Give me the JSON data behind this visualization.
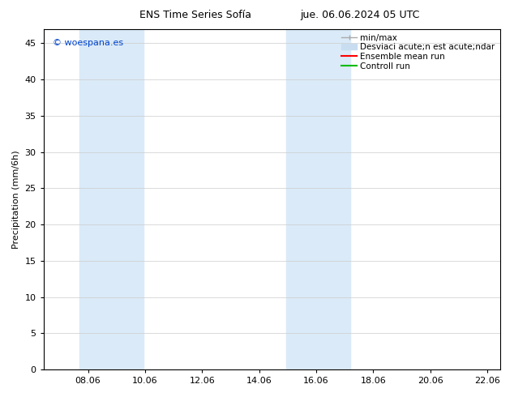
{
  "title_left": "ENS Time Series Sofía",
  "title_right": "jue. 06.06.2024 05 UTC",
  "ylabel": "Precipitation (mm/6h)",
  "watermark": "© woespana.es",
  "watermark_color": "#0044cc",
  "xlim_left": 6.5,
  "xlim_right": 22.5,
  "ylim_bottom": 0,
  "ylim_top": 47,
  "yticks": [
    0,
    5,
    10,
    15,
    20,
    25,
    30,
    35,
    40,
    45
  ],
  "xtick_labels": [
    "08.06",
    "10.06",
    "12.06",
    "14.06",
    "16.06",
    "18.06",
    "20.06",
    "22.06"
  ],
  "xtick_positions": [
    8.06,
    10.06,
    12.06,
    14.06,
    16.06,
    18.06,
    20.06,
    22.06
  ],
  "shaded_bands": [
    {
      "x_start": 7.75,
      "x_end": 10.0,
      "color": "#daeaf8"
    },
    {
      "x_start": 15.0,
      "x_end": 17.25,
      "color": "#daeaf8"
    }
  ],
  "legend_entries": [
    {
      "label": "min/max",
      "color": "#aaaaaa",
      "linewidth": 1.0
    },
    {
      "label": "Desviaci acute;n est acute;ndar",
      "color": "#c8ddf0",
      "linewidth": 5
    },
    {
      "label": "Ensemble mean run",
      "color": "#ff0000",
      "linewidth": 1.5
    },
    {
      "label": "Controll run",
      "color": "#00bb00",
      "linewidth": 1.5
    }
  ],
  "background_color": "#ffffff",
  "plot_bg_color": "#ffffff",
  "grid_color": "#cccccc",
  "tick_label_fontsize": 8,
  "ylabel_fontsize": 8,
  "title_fontsize": 9,
  "legend_fontsize": 7.5,
  "watermark_fontsize": 8
}
